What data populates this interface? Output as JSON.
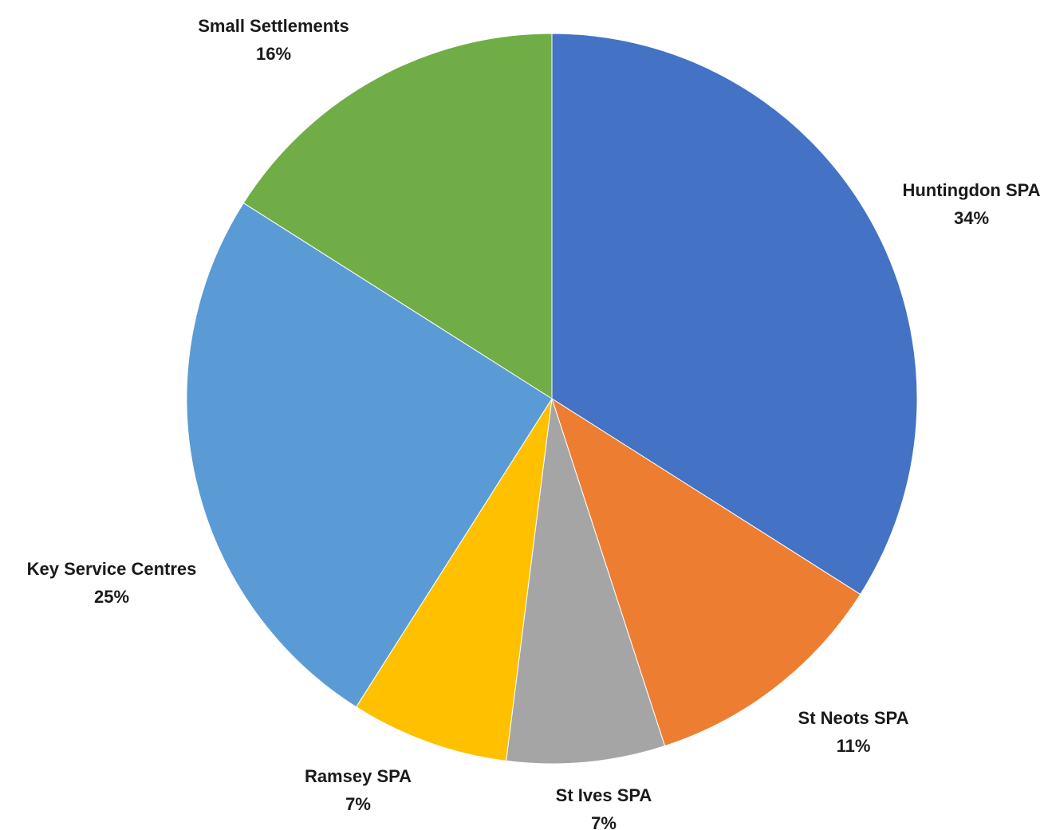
{
  "chart_data": {
    "type": "pie",
    "title": "",
    "start_angle_deg": 0,
    "direction": "clockwise",
    "slices": [
      {
        "name": "Huntingdon SPA",
        "value": 34,
        "label": "34%",
        "color": "#4472C4"
      },
      {
        "name": "St Neots SPA",
        "value": 11,
        "label": "11%",
        "color": "#ED7D31"
      },
      {
        "name": "St Ives SPA",
        "value": 7,
        "label": "7%",
        "color": "#A5A5A5"
      },
      {
        "name": "Ramsey SPA",
        "value": 7,
        "label": "7%",
        "color": "#FFC000"
      },
      {
        "name": "Key Service Centres",
        "value": 25,
        "label": "25%",
        "color": "#5B9BD5"
      },
      {
        "name": "Small Settlements",
        "value": 16,
        "label": "16%",
        "color": "#70AD47"
      }
    ]
  }
}
